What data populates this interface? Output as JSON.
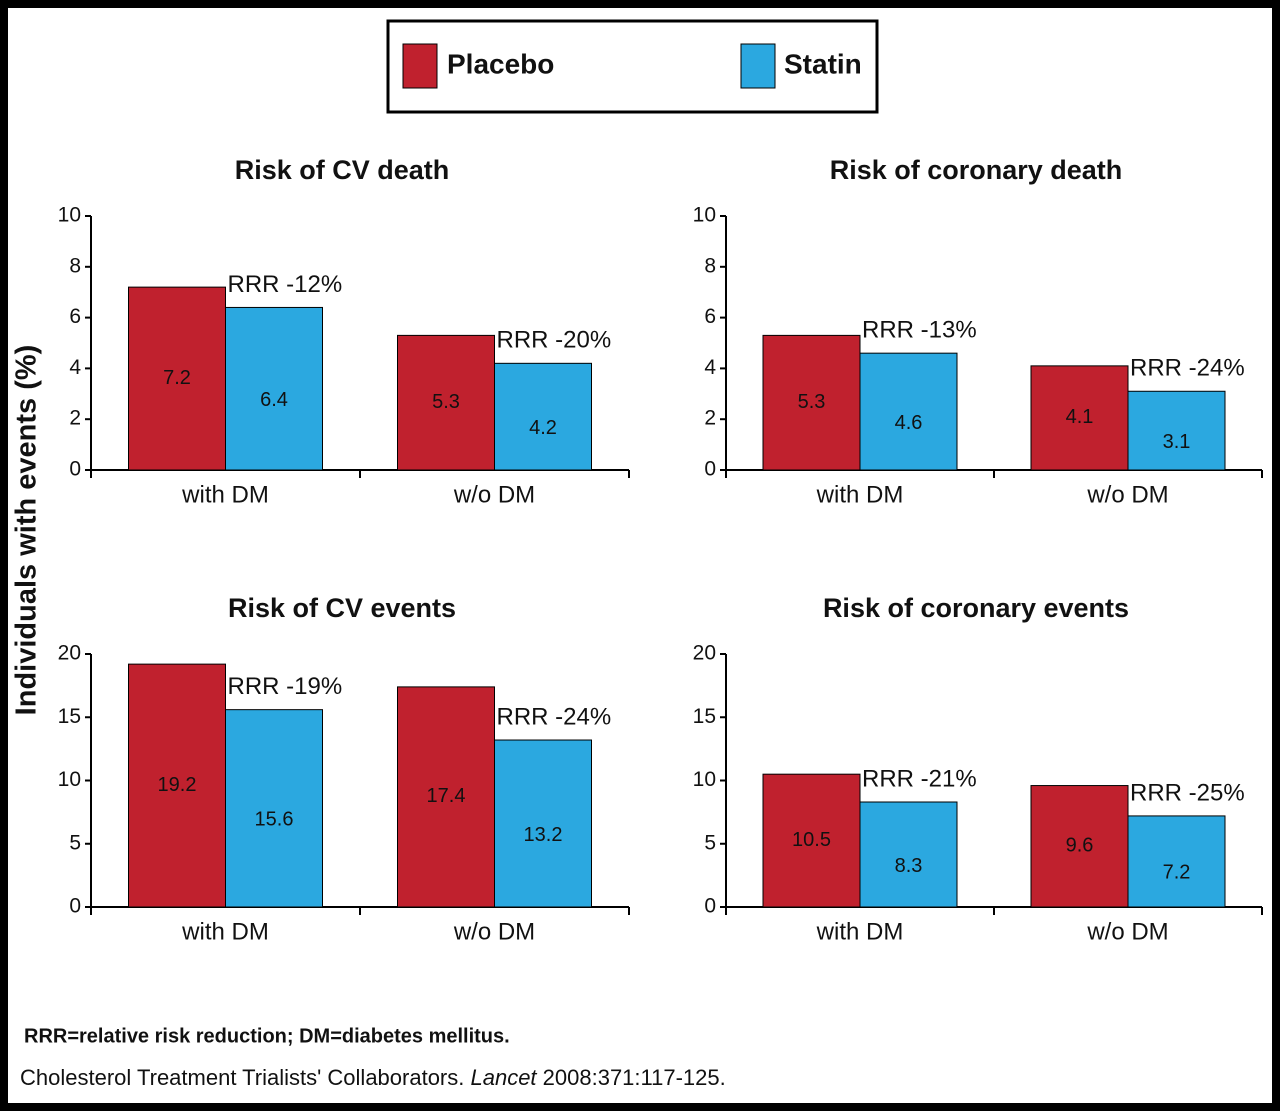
{
  "ylabel": "Individuals with events (%)",
  "footnote": "RRR=relative risk reduction; DM=diabetes mellitus.",
  "citation": [
    "Cholesterol Treatment Trialists' Collaborators. ",
    "Lancet",
    " 2008:371:117-125."
  ],
  "chart_data": [
    {
      "type": "bar",
      "title": "Risk of CV death",
      "categories": [
        "with DM",
        "w/o DM"
      ],
      "series": [
        {
          "name": "Placebo",
          "color": "#c0212e",
          "values": [
            7.2,
            5.3
          ]
        },
        {
          "name": "Statin",
          "color": "#2ba8e0",
          "values": [
            6.4,
            4.2
          ]
        }
      ],
      "annotations": [
        "RRR -12%",
        "RRR -20%"
      ],
      "ylim": [
        0,
        10
      ],
      "yticks": [
        0,
        2,
        4,
        6,
        8,
        10
      ]
    },
    {
      "type": "bar",
      "title": "Risk of coronary death",
      "categories": [
        "with DM",
        "w/o DM"
      ],
      "series": [
        {
          "name": "Placebo",
          "color": "#c0212e",
          "values": [
            5.3,
            4.1
          ]
        },
        {
          "name": "Statin",
          "color": "#2ba8e0",
          "values": [
            4.6,
            3.1
          ]
        }
      ],
      "annotations": [
        "RRR -13%",
        "RRR -24%"
      ],
      "ylim": [
        0,
        10
      ],
      "yticks": [
        0,
        2,
        4,
        6,
        8,
        10
      ]
    },
    {
      "type": "bar",
      "title": "Risk of CV events",
      "categories": [
        "with DM",
        "w/o DM"
      ],
      "series": [
        {
          "name": "Placebo",
          "color": "#c0212e",
          "values": [
            19.2,
            17.4
          ]
        },
        {
          "name": "Statin",
          "color": "#2ba8e0",
          "values": [
            15.6,
            13.2
          ]
        }
      ],
      "annotations": [
        "RRR -19%",
        "RRR -24%"
      ],
      "ylim": [
        0,
        20
      ],
      "yticks": [
        0,
        5,
        10,
        15,
        20
      ]
    },
    {
      "type": "bar",
      "title": "Risk of coronary events",
      "categories": [
        "with DM",
        "w/o DM"
      ],
      "series": [
        {
          "name": "Placebo",
          "color": "#c0212e",
          "values": [
            10.5,
            9.6
          ]
        },
        {
          "name": "Statin",
          "color": "#2ba8e0",
          "values": [
            8.3,
            7.2
          ]
        }
      ],
      "annotations": [
        "RRR -21%",
        "RRR -25%"
      ],
      "ylim": [
        0,
        20
      ],
      "yticks": [
        0,
        5,
        10,
        15,
        20
      ]
    }
  ]
}
